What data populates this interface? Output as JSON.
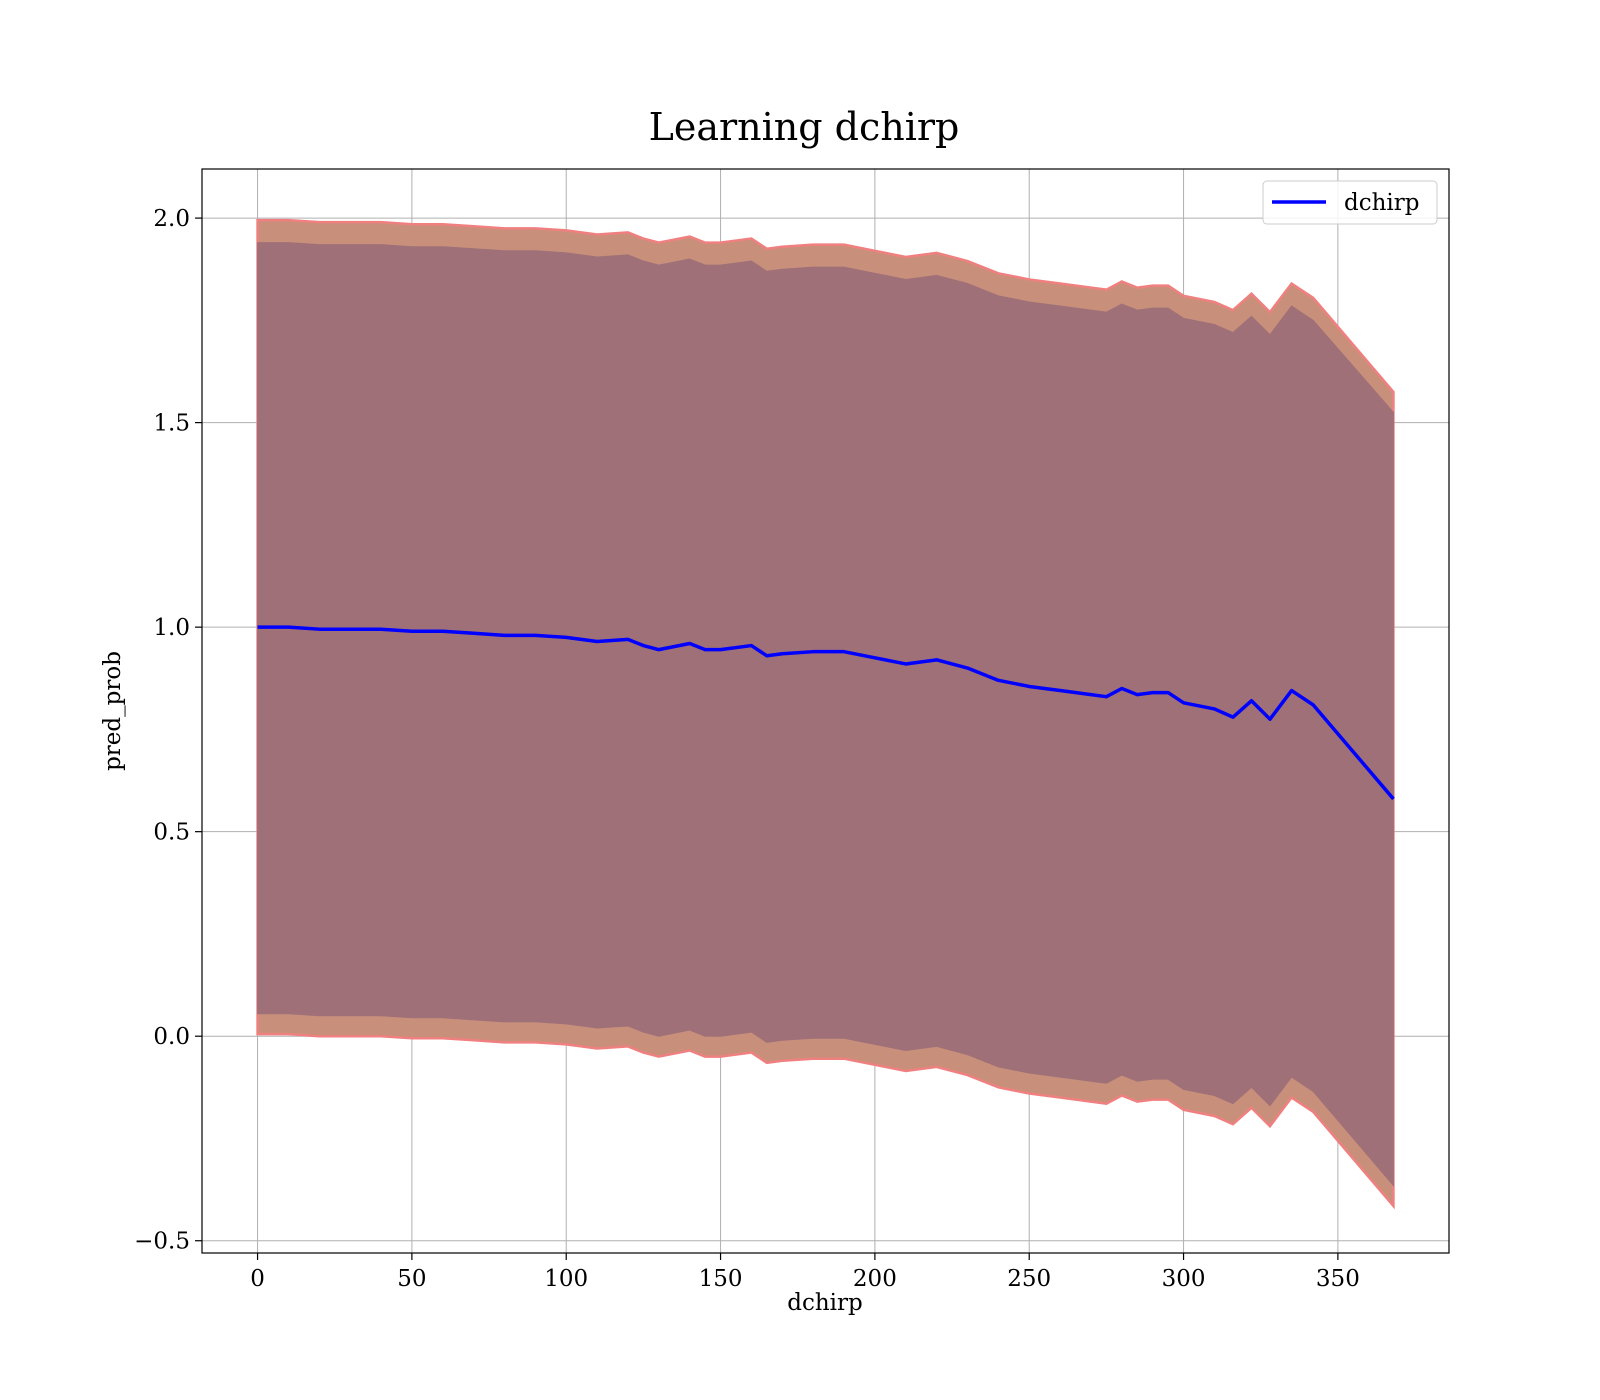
{
  "chart_data": {
    "type": "line",
    "title": "Learning dchirp",
    "xlabel": "dchirp",
    "ylabel": "pred_prob",
    "xlim": [
      -18,
      386
    ],
    "ylim": [
      -0.53,
      2.12
    ],
    "xticks": [
      0,
      50,
      100,
      150,
      200,
      250,
      300,
      350
    ],
    "yticks": [
      -0.5,
      0.0,
      0.5,
      1.0,
      1.5,
      2.0
    ],
    "xtick_labels": [
      "0",
      "50",
      "100",
      "150",
      "200",
      "250",
      "300",
      "350"
    ],
    "ytick_labels": [
      "−0.5",
      "0.0",
      "0.5",
      "1.0",
      "1.5",
      "2.0"
    ],
    "grid": true,
    "legend_position": "top-right",
    "colors": {
      "line": "#0000ff",
      "outer_band": "#c8907a",
      "outer_band_edge": "#f08080",
      "inner_band": "#a07078"
    },
    "series": [
      {
        "name": "dchirp",
        "x": [
          0,
          10,
          20,
          30,
          40,
          50,
          60,
          70,
          80,
          90,
          100,
          110,
          120,
          125,
          130,
          140,
          145,
          150,
          160,
          165,
          170,
          180,
          190,
          200,
          210,
          220,
          230,
          240,
          250,
          260,
          270,
          275,
          280,
          285,
          290,
          295,
          300,
          310,
          316,
          322,
          328,
          335,
          342,
          368
        ],
        "y": [
          1.0,
          1.0,
          0.995,
          0.995,
          0.995,
          0.99,
          0.99,
          0.985,
          0.98,
          0.98,
          0.975,
          0.965,
          0.97,
          0.955,
          0.945,
          0.96,
          0.945,
          0.945,
          0.955,
          0.93,
          0.935,
          0.94,
          0.94,
          0.925,
          0.91,
          0.92,
          0.9,
          0.87,
          0.855,
          0.845,
          0.835,
          0.83,
          0.85,
          0.835,
          0.84,
          0.84,
          0.815,
          0.8,
          0.78,
          0.82,
          0.775,
          0.845,
          0.81,
          0.58
        ]
      }
    ],
    "bands": {
      "outer_upper": [
        1.995,
        1.995,
        1.99,
        1.99,
        1.99,
        1.985,
        1.985,
        1.98,
        1.975,
        1.975,
        1.97,
        1.96,
        1.965,
        1.95,
        1.94,
        1.955,
        1.94,
        1.94,
        1.95,
        1.925,
        1.93,
        1.935,
        1.935,
        1.92,
        1.905,
        1.915,
        1.895,
        1.865,
        1.85,
        1.84,
        1.83,
        1.825,
        1.845,
        1.83,
        1.835,
        1.835,
        1.81,
        1.795,
        1.775,
        1.815,
        1.77,
        1.84,
        1.805,
        1.575
      ],
      "inner_upper": [
        1.94,
        1.94,
        1.935,
        1.935,
        1.935,
        1.93,
        1.93,
        1.925,
        1.92,
        1.92,
        1.915,
        1.905,
        1.91,
        1.895,
        1.885,
        1.9,
        1.885,
        1.885,
        1.895,
        1.87,
        1.875,
        1.88,
        1.88,
        1.865,
        1.85,
        1.86,
        1.84,
        1.81,
        1.795,
        1.785,
        1.775,
        1.77,
        1.79,
        1.775,
        1.78,
        1.78,
        1.755,
        1.74,
        1.72,
        1.76,
        1.715,
        1.785,
        1.75,
        1.525
      ],
      "inner_lower": [
        0.055,
        0.055,
        0.05,
        0.05,
        0.05,
        0.045,
        0.045,
        0.04,
        0.035,
        0.035,
        0.03,
        0.02,
        0.025,
        0.01,
        0.0,
        0.015,
        0.0,
        0.0,
        0.01,
        -0.015,
        -0.01,
        -0.005,
        -0.005,
        -0.02,
        -0.035,
        -0.025,
        -0.045,
        -0.075,
        -0.09,
        -0.1,
        -0.11,
        -0.115,
        -0.095,
        -0.11,
        -0.105,
        -0.105,
        -0.13,
        -0.145,
        -0.165,
        -0.125,
        -0.17,
        -0.1,
        -0.135,
        -0.365
      ],
      "outer_lower": [
        0.005,
        0.005,
        0.0,
        0.0,
        0.0,
        -0.005,
        -0.005,
        -0.01,
        -0.015,
        -0.015,
        -0.02,
        -0.03,
        -0.025,
        -0.04,
        -0.05,
        -0.035,
        -0.05,
        -0.05,
        -0.04,
        -0.065,
        -0.06,
        -0.055,
        -0.055,
        -0.07,
        -0.085,
        -0.075,
        -0.095,
        -0.125,
        -0.14,
        -0.15,
        -0.16,
        -0.165,
        -0.145,
        -0.16,
        -0.155,
        -0.155,
        -0.18,
        -0.195,
        -0.215,
        -0.175,
        -0.22,
        -0.15,
        -0.185,
        -0.415
      ]
    }
  }
}
